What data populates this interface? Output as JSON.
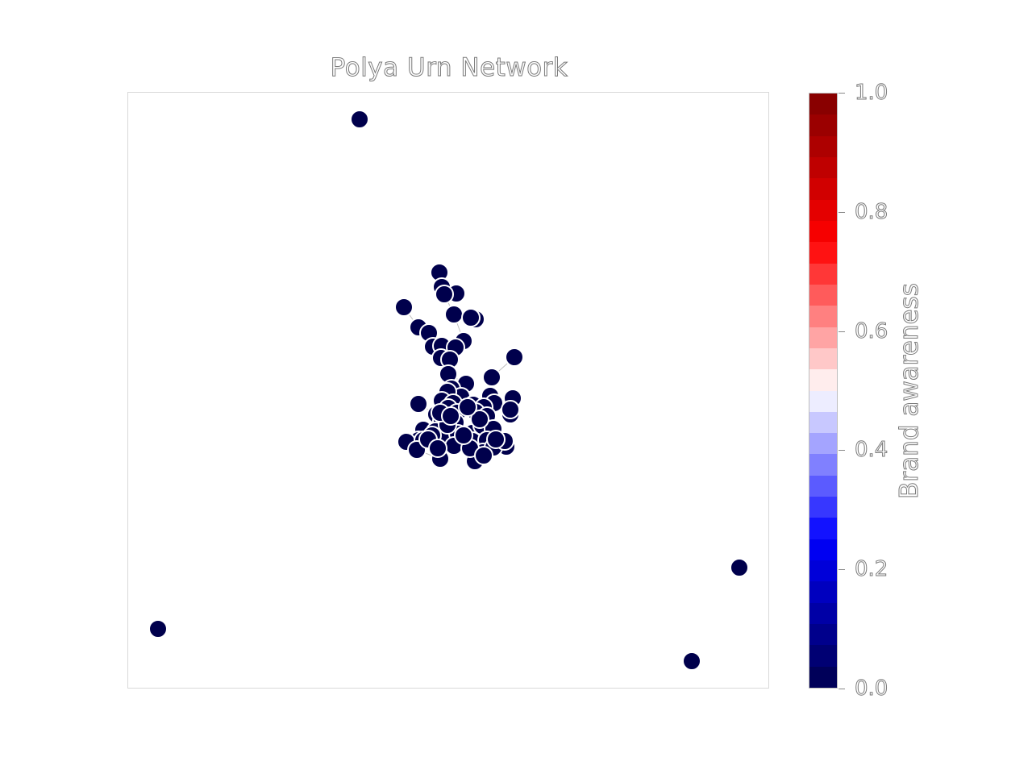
{
  "title": "Polya Urn Network",
  "colorbar": {
    "label": "Brand awareness",
    "ticks": [
      "0.0",
      "0.2",
      "0.4",
      "0.6",
      "0.8",
      "1.0"
    ],
    "tick_values": [
      0.0,
      0.2,
      0.4,
      0.6,
      0.8,
      1.0
    ],
    "colors": {
      "low": "#00004c",
      "mid": "#ffffff",
      "high": "#800000"
    }
  },
  "network": {
    "node_color": "#00004c",
    "edge_color": "#bfbfbf",
    "node_stroke": "#ffffff",
    "awareness_value": 0.0,
    "node_count": 76
  }
}
